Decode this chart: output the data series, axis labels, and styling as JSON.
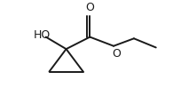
{
  "background_color": "#ffffff",
  "line_color": "#1a1a1a",
  "line_width": 1.4,
  "text_color": "#1a1a1a",
  "font_size": 8.5,
  "figsize": [
    1.95,
    1.08
  ],
  "dpi": 100,
  "HO_label": "HO",
  "O_label": "O",
  "O_carbonyl_label": "O"
}
